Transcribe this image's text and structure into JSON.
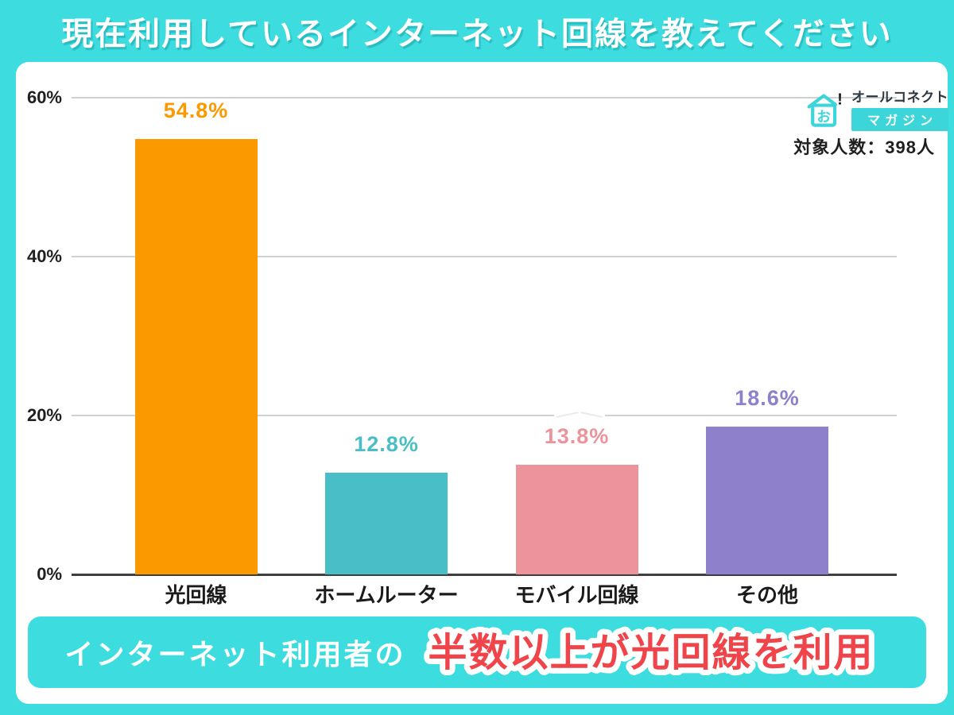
{
  "title": "現在利用しているインターネット回線を教えてください",
  "header_logo": {
    "brand": "オールコネクト",
    "magazine": "マガジン",
    "icon_glyph": "お",
    "icon_mark": "!"
  },
  "sample_size": "対象人数：398人",
  "chart_data": {
    "type": "bar",
    "title": "現在利用しているインターネット回線を教えてください",
    "categories": [
      "光回線",
      "ホームルーター",
      "モバイル回線",
      "その他"
    ],
    "values": [
      54.8,
      12.8,
      13.8,
      18.6
    ],
    "value_labels": [
      "54.8%",
      "12.8%",
      "13.8%",
      "18.6%"
    ],
    "bar_colors": [
      "#FB9A00",
      "#4ABEC6",
      "#EC939B",
      "#8F80CB"
    ],
    "y_ticks": [
      {
        "label": "60%",
        "value": 60
      },
      {
        "label": "40%",
        "value": 40
      },
      {
        "label": "20%",
        "value": 20
      },
      {
        "label": "0%",
        "value": 0
      }
    ],
    "ylim": [
      0,
      60
    ],
    "grid": true,
    "legend": false
  },
  "footer": {
    "prefix": "インターネット利用者の",
    "highlight": "半数以上が光回線を利用"
  },
  "colors": {
    "background_cyan": "#3CDCDF",
    "panel_white": "#FFFFFF",
    "highlight_red": "#EF4449",
    "text_dark": "#1F1F1F",
    "gridline_gray": "#CFD2D3",
    "axis_gray": "#3F3F3F"
  }
}
